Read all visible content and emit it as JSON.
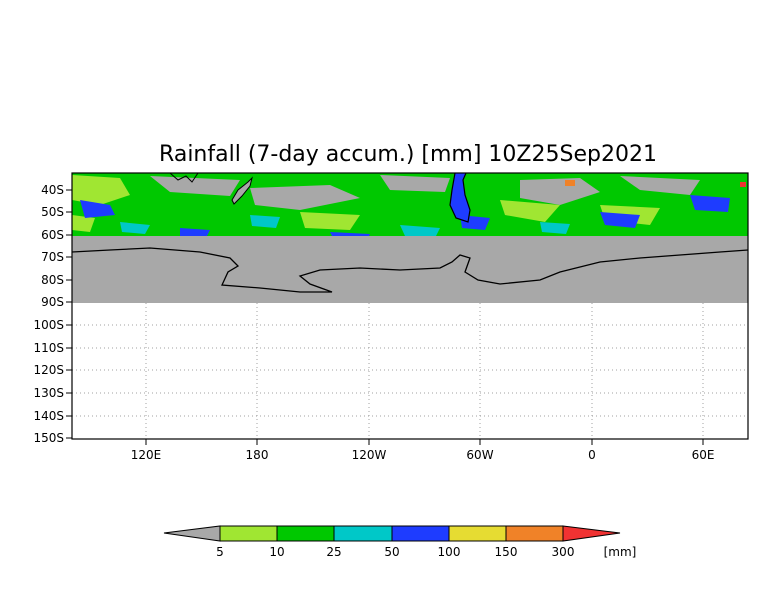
{
  "title": "Rainfall (7-day accum.) [mm] 10Z25Sep2021",
  "lat_labels": [
    "40S",
    "50S",
    "60S",
    "70S",
    "80S",
    "90S",
    "100S",
    "110S",
    "120S",
    "130S",
    "140S",
    "150S"
  ],
  "lon_labels": [
    "120E",
    "180",
    "120W",
    "60W",
    "0",
    "60E"
  ],
  "colorbar": {
    "unit": "[mm]",
    "levels": [
      "5",
      "10",
      "25",
      "50",
      "100",
      "150",
      "300"
    ],
    "colors": [
      "#a8a8a8",
      "#a0e632",
      "#00c800",
      "#00c8c8",
      "#1e3cff",
      "#e6dc32",
      "#f08228",
      "#f03232"
    ]
  },
  "colors": {
    "land_mask": "#a8a8a8",
    "ocean_band": "#00c800",
    "coastline": "#000000"
  }
}
